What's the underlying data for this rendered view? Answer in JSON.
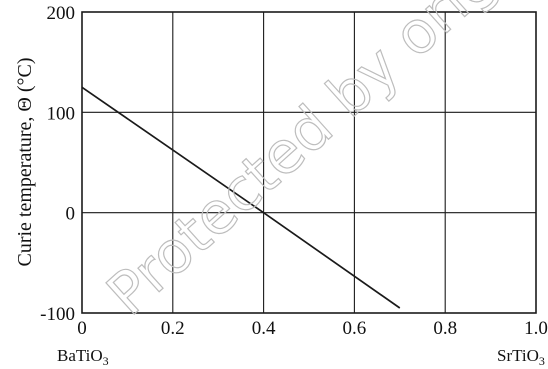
{
  "chart_data": {
    "type": "line",
    "xlabel": "",
    "ylabel": "Curie temperature, Θ (°C)",
    "xlim": [
      0,
      1.0
    ],
    "ylim": [
      -100,
      200
    ],
    "x_ticks": [
      "0",
      "0.2",
      "0.4",
      "0.6",
      "0.8",
      "1.0"
    ],
    "x_tick_values": [
      0,
      0.2,
      0.4,
      0.6,
      0.8,
      1.0
    ],
    "y_ticks": [
      "200",
      "100",
      "0",
      "-100"
    ],
    "y_tick_values": [
      200,
      100,
      0,
      -100
    ],
    "x_end_labels": {
      "left": "BaTiO",
      "left_sub": "3",
      "right": "SrTiO",
      "right_sub": "3"
    },
    "grid": true,
    "series": [
      {
        "x": [
          0,
          0.4,
          0.7
        ],
        "y": [
          125,
          0,
          -95
        ]
      }
    ],
    "colors": {
      "line": "#1a1a1a",
      "grid": "#1a1a1a"
    }
  },
  "watermark": "Protected by original copyright"
}
